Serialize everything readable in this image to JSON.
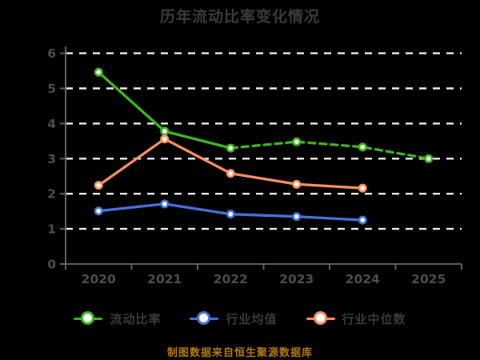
{
  "chart_data": {
    "type": "line",
    "title": "历年流动比率变化情况",
    "categories": [
      "2020",
      "2021",
      "2022",
      "2023",
      "2024",
      "2025"
    ],
    "yticks": [
      0,
      1,
      2,
      3,
      4,
      5,
      6
    ],
    "ylim": [
      0,
      6
    ],
    "grid": "horizontal-dashed-white",
    "legend_position": "bottom",
    "background": "#000000",
    "series": [
      {
        "name": "流动比率",
        "color": "#3db51e",
        "values": [
          5.46,
          3.78,
          3.3,
          3.48,
          3.33,
          3.0
        ],
        "dash_from_index": 2,
        "marker": "open-circle"
      },
      {
        "name": "行业均值",
        "color": "#4372d8",
        "values": [
          1.51,
          1.71,
          1.42,
          1.35,
          1.25,
          null
        ],
        "dash_from_index": null,
        "marker": "open-circle"
      },
      {
        "name": "行业中位数",
        "color": "#f98e5f",
        "values": [
          2.24,
          3.56,
          2.58,
          2.27,
          2.16,
          null
        ],
        "dash_from_index": null,
        "marker": "open-circle"
      }
    ]
  },
  "footer": {
    "text": "制图数据来自恒生聚源数据库"
  },
  "colors": {
    "background": "#000000",
    "title_text": "#3a3a3a",
    "tick_text": "#4c4c4c",
    "axis_line": "#5f5f5f",
    "gridline": "#ebebeb",
    "footer_text": "#b4770f"
  }
}
